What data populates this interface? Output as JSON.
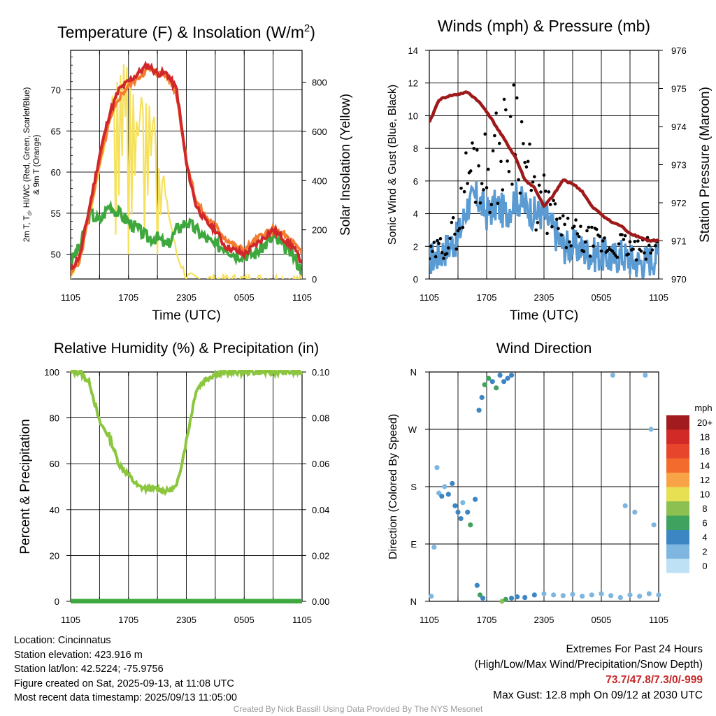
{
  "panels": [
    {
      "id": "temp",
      "title_main": "Temperature (F) & Insolation (W/m",
      "title_sup": "2",
      "title_end": ")",
      "xlabel": "Time (UTC)",
      "ylabel_left_line1": "2m T, T",
      "ylabel_left_sub": "d",
      "ylabel_left_line1b": ", HI/WC (Red, Green, Scarlet/Blue)",
      "ylabel_left_line2": "& 9m T (Orange)",
      "ylabel_right": "Solar Insolation (Yellow)",
      "xticks": [
        "1105",
        "1705",
        "2305",
        "0505",
        "1105"
      ],
      "yticks_left": [
        "50",
        "55",
        "60",
        "65",
        "70"
      ],
      "yticks_right": [
        "0",
        "200",
        "400",
        "600",
        "800"
      ]
    },
    {
      "id": "wind",
      "title": "Winds (mph) & Pressure (mb)",
      "xlabel": "Time (UTC)",
      "ylabel_left": "Sonic Wind & Gust (Blue, Black)",
      "ylabel_right": "Station Pressure (Maroon)",
      "xticks": [
        "1105",
        "1705",
        "2305",
        "0505",
        "1105"
      ],
      "yticks_left": [
        "0",
        "2",
        "4",
        "6",
        "8",
        "10",
        "12",
        "14"
      ],
      "yticks_right": [
        "970",
        "971",
        "972",
        "973",
        "974",
        "975",
        "976"
      ]
    },
    {
      "id": "rh",
      "title": "Relative Humidity (%) & Precipitation (in)",
      "ylabel_left": "Percent & Precipitation",
      "xticks": [
        "1105",
        "1705",
        "2305",
        "0505",
        "1105"
      ],
      "yticks_left": [
        "0",
        "20",
        "40",
        "60",
        "80",
        "100"
      ],
      "yticks_right": [
        "0.00",
        "0.02",
        "0.04",
        "0.06",
        "0.08",
        "0.10"
      ]
    },
    {
      "id": "dir",
      "title": "Wind Direction",
      "ylabel_left": "Direction (Colored By Speed)",
      "xticks": [
        "1105",
        "1705",
        "2305",
        "0505",
        "1105"
      ],
      "yticks_left": [
        "N",
        "E",
        "S",
        "W",
        "N"
      ]
    }
  ],
  "legend": {
    "title": "mph",
    "labels": [
      "20+",
      "18",
      "16",
      "14",
      "12",
      "10",
      "8",
      "6",
      "4",
      "2",
      "0"
    ],
    "colors": [
      "#a11b1f",
      "#d22b27",
      "#e8462c",
      "#f36c2e",
      "#f8a446",
      "#e8e053",
      "#8cc152",
      "#3fa35f",
      "#3d86c4",
      "#7fb6e0",
      "#bfe1f5"
    ]
  },
  "colors": {
    "temp_red": "#d0282a",
    "temp_orange": "#f47c30",
    "dewpoint_green": "#3ea83e",
    "insolation_yellow": "#f6e15c",
    "wind_blue": "#5a9bd4",
    "gust_black": "#000000",
    "pressure_maroon": "#9e1a1a",
    "rh_green": "#8cc63f",
    "precip_green": "#3ea83e"
  },
  "footer": {
    "location": "Location: Cincinnatus",
    "elevation": "Station elevation: 423.916 m",
    "latlon": "Station lat/lon: 42.5224; -75.9756",
    "created": "Figure created on Sat, 2025-09-13, at 11:08 UTC",
    "recent": "Most recent data timestamp: 2025/09/13 11:05:00",
    "extremes_title": "Extremes For Past 24 Hours",
    "extremes_sub": "(High/Low/Max Wind/Precipitation/Snow Depth)",
    "extremes_values": "73.7/47.8/7.3/0/-999",
    "max_gust": "Max Gust: 12.8 mph On 09/12 at 2030 UTC",
    "credit": "Created By Nick Bassill Using Data Provided By The NYS Mesonet"
  },
  "chart_data": [
    {
      "type": "line",
      "id": "temperature",
      "x_hours_from_1105": [
        0,
        1,
        2,
        3,
        4,
        5,
        6,
        7,
        8,
        9,
        10,
        11,
        12,
        13,
        14,
        15,
        16,
        17,
        18,
        19,
        20,
        21,
        22,
        23,
        24
      ],
      "ylim_left": [
        47,
        74.8
      ],
      "ylim_right": [
        0,
        930
      ],
      "series": [
        {
          "name": "2m T",
          "values": [
            48,
            50,
            56,
            62,
            67,
            70,
            71,
            72,
            73,
            72,
            72,
            70,
            61,
            56,
            54,
            53,
            51,
            50.5,
            50,
            51,
            52,
            53,
            52,
            51,
            49
          ]
        },
        {
          "name": "9m T",
          "values": [
            47.5,
            49.5,
            55.5,
            61,
            66,
            69,
            70.5,
            71.5,
            72.5,
            72,
            71.8,
            69.5,
            61.5,
            56.5,
            54.5,
            53.5,
            52,
            51,
            50.5,
            51.5,
            52.5,
            53,
            52.5,
            51.5,
            50
          ]
        },
        {
          "name": "2m Td",
          "values": [
            49,
            51,
            55,
            54,
            56,
            55,
            54,
            53,
            52,
            52,
            51,
            53,
            54,
            53,
            52,
            51,
            51,
            50,
            50,
            50,
            51,
            52,
            51,
            50,
            48
          ]
        },
        {
          "name": "Solar Insolation",
          "values": [
            0,
            120,
            260,
            450,
            650,
            830,
            880,
            600,
            750,
            500,
            300,
            100,
            10,
            0,
            0,
            0,
            0,
            0,
            0,
            0,
            0,
            0,
            0,
            0,
            0
          ]
        }
      ]
    },
    {
      "type": "line",
      "id": "winds",
      "x_hours_from_1105": [
        0,
        1,
        2,
        3,
        4,
        5,
        6,
        7,
        8,
        9,
        10,
        11,
        12,
        13,
        14,
        15,
        16,
        17,
        18,
        19,
        20,
        21,
        22,
        23,
        24
      ],
      "ylim_left": [
        0,
        14
      ],
      "ylim_right": [
        970,
        976
      ],
      "series": [
        {
          "name": "Sonic Wind",
          "values": [
            1.2,
            1.5,
            2,
            2.5,
            4.5,
            5,
            4,
            4.5,
            4,
            5,
            4.5,
            4,
            4,
            3,
            2,
            2,
            1.8,
            1.5,
            1.5,
            1.2,
            1.5,
            1.2,
            1,
            1.2,
            1.5
          ]
        },
        {
          "name": "Gust",
          "values": [
            1.5,
            2,
            2.5,
            3.5,
            7,
            8,
            7,
            8,
            9,
            11,
            8,
            5,
            5,
            4,
            3,
            3,
            2.5,
            2.5,
            2.3,
            2,
            2.3,
            2,
            1.8,
            2,
            2.2
          ]
        },
        {
          "name": "Station Pressure",
          "values": [
            974.1,
            974.7,
            974.8,
            974.85,
            974.9,
            974.7,
            974.4,
            974,
            973.6,
            973.2,
            972.6,
            972.4,
            971.9,
            972.2,
            972.6,
            972.5,
            972.3,
            971.9,
            971.7,
            971.5,
            971.4,
            971.2,
            971.1,
            971,
            971
          ]
        }
      ]
    },
    {
      "type": "line",
      "id": "humidity",
      "x_hours_from_1105": [
        0,
        1,
        2,
        3,
        4,
        5,
        6,
        7,
        8,
        9,
        10,
        11,
        12,
        13,
        14,
        15,
        16,
        17,
        18,
        19,
        20,
        21,
        22,
        23,
        24
      ],
      "ylim_left": [
        0,
        100
      ],
      "ylim_right": [
        0,
        0.1
      ],
      "series": [
        {
          "name": "Relative Humidity",
          "values": [
            100,
            100,
            95,
            78,
            72,
            60,
            55,
            50,
            49,
            49,
            48,
            50,
            70,
            92,
            97,
            99,
            99.5,
            100,
            100,
            100,
            100,
            100,
            100,
            100,
            100
          ]
        },
        {
          "name": "Precipitation",
          "values": [
            0,
            0,
            0,
            0,
            0,
            0,
            0,
            0,
            0,
            0,
            0,
            0,
            0,
            0,
            0,
            0,
            0,
            0,
            0,
            0,
            0,
            0,
            0,
            0,
            0
          ]
        }
      ]
    },
    {
      "type": "scatter",
      "id": "wind_direction",
      "ylim_deg": [
        0,
        360
      ],
      "points": [
        {
          "x": 0.2,
          "deg": 8,
          "speed": 2
        },
        {
          "x": 0.5,
          "deg": 85,
          "speed": 1
        },
        {
          "x": 0.8,
          "deg": 210,
          "speed": 1
        },
        {
          "x": 1.0,
          "deg": 170,
          "speed": 2
        },
        {
          "x": 1.3,
          "deg": 165,
          "speed": 3
        },
        {
          "x": 1.6,
          "deg": 180,
          "speed": 2
        },
        {
          "x": 2.0,
          "deg": 168,
          "speed": 3
        },
        {
          "x": 2.4,
          "deg": 185,
          "speed": 4
        },
        {
          "x": 2.7,
          "deg": 150,
          "speed": 3
        },
        {
          "x": 3.0,
          "deg": 140,
          "speed": 4
        },
        {
          "x": 3.3,
          "deg": 130,
          "speed": 3
        },
        {
          "x": 3.5,
          "deg": 155,
          "speed": 2
        },
        {
          "x": 4.0,
          "deg": 140,
          "speed": 4
        },
        {
          "x": 4.3,
          "deg": 120,
          "speed": 5
        },
        {
          "x": 4.8,
          "deg": 160,
          "speed": 3
        },
        {
          "x": 5.0,
          "deg": 25,
          "speed": 3
        },
        {
          "x": 5.3,
          "deg": 10,
          "speed": 6
        },
        {
          "x": 5.6,
          "deg": 5,
          "speed": 4
        },
        {
          "x": 5.2,
          "deg": 300,
          "speed": 4
        },
        {
          "x": 5.5,
          "deg": 320,
          "speed": 3
        },
        {
          "x": 5.8,
          "deg": 340,
          "speed": 5
        },
        {
          "x": 6.2,
          "deg": 350,
          "speed": 6
        },
        {
          "x": 6.6,
          "deg": 345,
          "speed": 4
        },
        {
          "x": 7.0,
          "deg": 335,
          "speed": 5
        },
        {
          "x": 7.4,
          "deg": 355,
          "speed": 4
        },
        {
          "x": 7.8,
          "deg": 345,
          "speed": 3
        },
        {
          "x": 8.2,
          "deg": 350,
          "speed": 4
        },
        {
          "x": 8.6,
          "deg": 355,
          "speed": 3
        },
        {
          "x": 7.6,
          "deg": 0,
          "speed": 7
        },
        {
          "x": 8.0,
          "deg": 3,
          "speed": 5
        },
        {
          "x": 8.6,
          "deg": 5,
          "speed": 4
        },
        {
          "x": 9.2,
          "deg": 7,
          "speed": 4
        },
        {
          "x": 10.0,
          "deg": 6,
          "speed": 3
        },
        {
          "x": 11.0,
          "deg": 10,
          "speed": 3
        },
        {
          "x": 12.0,
          "deg": 12,
          "speed": 2
        },
        {
          "x": 13.0,
          "deg": 10,
          "speed": 2
        },
        {
          "x": 14.0,
          "deg": 9,
          "speed": 2
        },
        {
          "x": 15.0,
          "deg": 11,
          "speed": 2
        },
        {
          "x": 16.0,
          "deg": 8,
          "speed": 1
        },
        {
          "x": 17.0,
          "deg": 10,
          "speed": 2
        },
        {
          "x": 18.0,
          "deg": 12,
          "speed": 1
        },
        {
          "x": 19.0,
          "deg": 9,
          "speed": 1
        },
        {
          "x": 20.0,
          "deg": 6,
          "speed": 1
        },
        {
          "x": 21.0,
          "deg": 10,
          "speed": 1
        },
        {
          "x": 22.0,
          "deg": 8,
          "speed": 1
        },
        {
          "x": 23.0,
          "deg": 12,
          "speed": 1
        },
        {
          "x": 24.0,
          "deg": 10,
          "speed": 1
        },
        {
          "x": 20.5,
          "deg": 150,
          "speed": 1
        },
        {
          "x": 21.5,
          "deg": 140,
          "speed": 1
        },
        {
          "x": 23.5,
          "deg": 120,
          "speed": 1
        },
        {
          "x": 19.2,
          "deg": 355,
          "speed": 1
        },
        {
          "x": 22.6,
          "deg": 355,
          "speed": 1
        },
        {
          "x": 23.2,
          "deg": 270,
          "speed": 1
        }
      ]
    }
  ]
}
